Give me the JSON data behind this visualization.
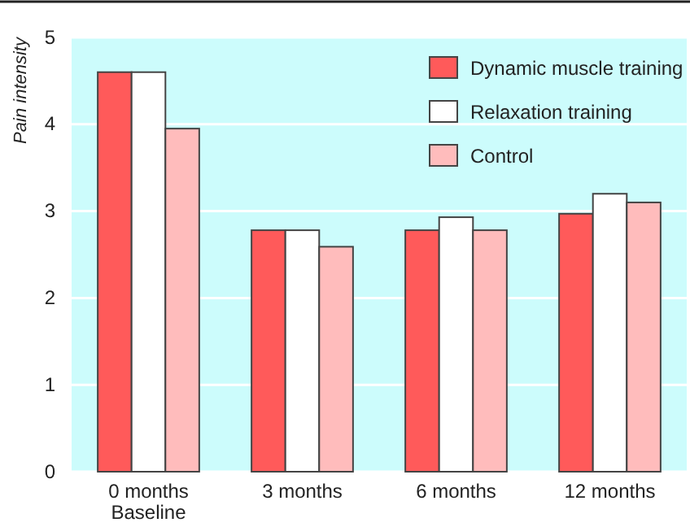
{
  "chart_data": {
    "type": "bar",
    "ylabel": "Pain intensity",
    "categories": [
      "0 months\nBaseline",
      "3 months",
      "6 months",
      "12 months"
    ],
    "series": [
      {
        "name": "Dynamic muscle training",
        "color": "#ff5a5a",
        "values": [
          4.6,
          2.78,
          2.78,
          2.97
        ]
      },
      {
        "name": "Relaxation training",
        "color": "#ffffff",
        "values": [
          4.6,
          2.78,
          2.93,
          3.2
        ]
      },
      {
        "name": "Control",
        "color": "#ffbcbc",
        "values": [
          3.95,
          2.59,
          2.78,
          3.1
        ]
      }
    ],
    "ylim": [
      0,
      5
    ],
    "yticks": [
      0,
      1,
      2,
      3,
      4,
      5
    ],
    "grid": "y",
    "legend": "top right"
  }
}
